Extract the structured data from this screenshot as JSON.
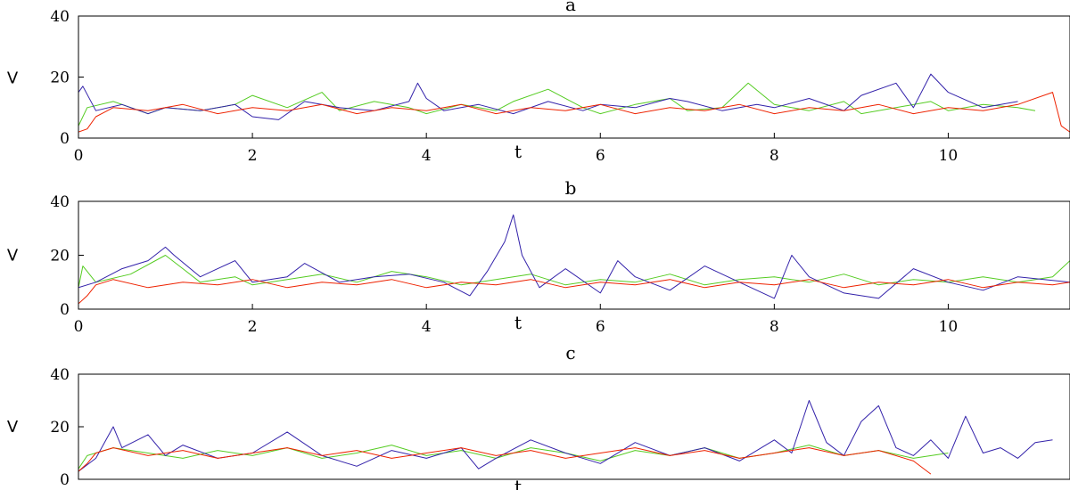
{
  "chart_data": [
    {
      "type": "line",
      "title": "a",
      "xlabel": "t",
      "ylabel": "V",
      "xlim": [
        0,
        11.4
      ],
      "ylim": [
        0,
        40
      ],
      "xticks": [
        0,
        2,
        4,
        6,
        8,
        10
      ],
      "yticks": [
        0,
        20,
        40
      ],
      "series": [
        {
          "color": "#55cc22",
          "x": [
            0.0,
            0.1,
            0.4,
            0.8,
            1.0,
            1.4,
            1.8,
            2.0,
            2.4,
            2.8,
            3.0,
            3.4,
            3.8,
            4.0,
            4.4,
            4.8,
            5.0,
            5.4,
            5.8,
            6.0,
            6.4,
            6.8,
            7.0,
            7.4,
            7.7,
            8.0,
            8.4,
            8.8,
            9.0,
            9.4,
            9.8,
            10.0,
            10.4,
            10.8,
            11.0
          ],
          "y": [
            4,
            10,
            12,
            8,
            10,
            9,
            11,
            14,
            10,
            15,
            9,
            12,
            10,
            8,
            11,
            9,
            12,
            16,
            10,
            8,
            11,
            13,
            9,
            10,
            18,
            11,
            9,
            12,
            8,
            10,
            12,
            9,
            11,
            10,
            9
          ]
        },
        {
          "color": "#3322aa",
          "x": [
            0.0,
            0.05,
            0.2,
            0.5,
            0.8,
            1.0,
            1.4,
            1.8,
            2.0,
            2.3,
            2.6,
            3.0,
            3.4,
            3.8,
            3.9,
            4.0,
            4.2,
            4.6,
            5.0,
            5.4,
            5.8,
            6.0,
            6.4,
            6.8,
            7.0,
            7.4,
            7.8,
            8.0,
            8.4,
            8.8,
            9.0,
            9.4,
            9.6,
            9.8,
            10.0,
            10.4,
            10.8
          ],
          "y": [
            15,
            17,
            9,
            11,
            8,
            10,
            9,
            11,
            7,
            6,
            12,
            10,
            9,
            12,
            18,
            13,
            9,
            11,
            8,
            12,
            9,
            11,
            10,
            13,
            12,
            9,
            11,
            10,
            13,
            9,
            14,
            18,
            10,
            21,
            15,
            10,
            12
          ]
        },
        {
          "color": "#ee2200",
          "x": [
            0.0,
            0.1,
            0.2,
            0.4,
            0.8,
            1.2,
            1.6,
            2.0,
            2.4,
            2.8,
            3.2,
            3.6,
            4.0,
            4.4,
            4.8,
            5.2,
            5.6,
            6.0,
            6.4,
            6.8,
            7.2,
            7.6,
            8.0,
            8.4,
            8.8,
            9.2,
            9.6,
            10.0,
            10.4,
            10.8,
            11.2,
            11.3,
            11.4
          ],
          "y": [
            2,
            3,
            7,
            10,
            9,
            11,
            8,
            10,
            9,
            11,
            8,
            10,
            9,
            11,
            8,
            10,
            9,
            11,
            8,
            10,
            9,
            11,
            8,
            10,
            9,
            11,
            8,
            10,
            9,
            11,
            15,
            4,
            2
          ]
        }
      ]
    },
    {
      "type": "line",
      "title": "b",
      "xlabel": "t",
      "ylabel": "V",
      "xlim": [
        0,
        11.4
      ],
      "ylim": [
        0,
        40
      ],
      "xticks": [
        0,
        2,
        4,
        6,
        8,
        10
      ],
      "yticks": [
        0,
        20,
        40
      ],
      "series": [
        {
          "color": "#55cc22",
          "x": [
            0.0,
            0.05,
            0.2,
            0.6,
            1.0,
            1.2,
            1.4,
            1.8,
            2.0,
            2.4,
            2.8,
            3.2,
            3.6,
            4.0,
            4.4,
            4.8,
            5.2,
            5.6,
            6.0,
            6.4,
            6.8,
            7.2,
            7.6,
            8.0,
            8.4,
            8.8,
            9.2,
            9.6,
            10.0,
            10.4,
            10.8,
            11.2,
            11.4
          ],
          "y": [
            8,
            16,
            10,
            13,
            20,
            15,
            10,
            12,
            9,
            11,
            13,
            10,
            14,
            12,
            9,
            11,
            13,
            9,
            11,
            10,
            13,
            9,
            11,
            12,
            10,
            13,
            9,
            11,
            10,
            12,
            10,
            12,
            18
          ]
        },
        {
          "color": "#3322aa",
          "x": [
            0.0,
            0.2,
            0.5,
            0.8,
            1.0,
            1.1,
            1.4,
            1.6,
            1.8,
            2.0,
            2.4,
            2.6,
            3.0,
            3.4,
            3.8,
            4.2,
            4.5,
            4.7,
            4.9,
            5.0,
            5.1,
            5.3,
            5.6,
            6.0,
            6.2,
            6.4,
            6.8,
            7.2,
            7.6,
            8.0,
            8.2,
            8.4,
            8.8,
            9.2,
            9.6,
            10.0,
            10.4,
            10.8,
            11.4
          ],
          "y": [
            8,
            10,
            15,
            18,
            23,
            20,
            12,
            15,
            18,
            10,
            12,
            17,
            10,
            12,
            13,
            10,
            5,
            14,
            25,
            35,
            20,
            8,
            15,
            6,
            18,
            12,
            7,
            16,
            10,
            4,
            20,
            12,
            6,
            4,
            15,
            10,
            7,
            12,
            10
          ]
        },
        {
          "color": "#ee2200",
          "x": [
            0.0,
            0.1,
            0.2,
            0.4,
            0.8,
            1.2,
            1.6,
            2.0,
            2.4,
            2.8,
            3.2,
            3.6,
            4.0,
            4.4,
            4.8,
            5.2,
            5.6,
            6.0,
            6.4,
            6.8,
            7.2,
            7.6,
            8.0,
            8.4,
            8.8,
            9.2,
            9.6,
            10.0,
            10.4,
            10.8,
            11.2,
            11.4
          ],
          "y": [
            2,
            5,
            9,
            11,
            8,
            10,
            9,
            11,
            8,
            10,
            9,
            11,
            8,
            10,
            9,
            11,
            8,
            10,
            9,
            11,
            8,
            10,
            9,
            11,
            8,
            10,
            9,
            11,
            8,
            10,
            9,
            10
          ]
        }
      ]
    },
    {
      "type": "line",
      "title": "c",
      "xlabel": "t",
      "ylabel": "V",
      "xlim": [
        0,
        11.4
      ],
      "ylim": [
        0,
        40
      ],
      "xticks": [],
      "yticks": [
        0,
        20,
        40
      ],
      "series": [
        {
          "color": "#55cc22",
          "x": [
            0.0,
            0.1,
            0.4,
            0.8,
            1.2,
            1.6,
            2.0,
            2.4,
            2.8,
            3.2,
            3.6,
            4.0,
            4.4,
            4.8,
            5.2,
            5.6,
            6.0,
            6.4,
            6.8,
            7.2,
            7.6,
            8.0,
            8.4,
            8.8,
            9.2,
            9.6,
            10.0
          ],
          "y": [
            4,
            9,
            12,
            10,
            8,
            11,
            9,
            12,
            8,
            10,
            13,
            9,
            11,
            8,
            12,
            10,
            7,
            11,
            9,
            12,
            8,
            10,
            13,
            9,
            11,
            8,
            10
          ]
        },
        {
          "color": "#3322aa",
          "x": [
            0.0,
            0.2,
            0.4,
            0.5,
            0.8,
            1.0,
            1.2,
            1.6,
            2.0,
            2.4,
            2.8,
            3.2,
            3.6,
            4.0,
            4.4,
            4.6,
            4.8,
            5.2,
            5.6,
            6.0,
            6.4,
            6.8,
            7.2,
            7.6,
            8.0,
            8.2,
            8.4,
            8.6,
            8.8,
            9.0,
            9.2,
            9.4,
            9.6,
            9.8,
            10.0,
            10.2,
            10.4,
            10.6,
            10.8,
            11.0,
            11.2
          ],
          "y": [
            3,
            8,
            20,
            12,
            17,
            9,
            13,
            8,
            10,
            18,
            9,
            5,
            11,
            8,
            12,
            4,
            8,
            15,
            10,
            6,
            14,
            9,
            12,
            7,
            15,
            10,
            30,
            14,
            9,
            22,
            28,
            12,
            9,
            15,
            8,
            24,
            10,
            12,
            8,
            14,
            15
          ]
        },
        {
          "color": "#ee2200",
          "x": [
            0.0,
            0.1,
            0.2,
            0.4,
            0.8,
            1.2,
            1.6,
            2.0,
            2.4,
            2.8,
            3.2,
            3.6,
            4.0,
            4.4,
            4.8,
            5.2,
            5.6,
            6.0,
            6.4,
            6.8,
            7.2,
            7.6,
            8.0,
            8.4,
            8.8,
            9.2,
            9.6,
            9.8
          ],
          "y": [
            3,
            6,
            10,
            12,
            9,
            11,
            8,
            10,
            12,
            9,
            11,
            8,
            10,
            12,
            9,
            11,
            8,
            10,
            12,
            9,
            11,
            8,
            10,
            12,
            9,
            11,
            7,
            2
          ]
        }
      ]
    }
  ],
  "partial_xlabel": "t"
}
